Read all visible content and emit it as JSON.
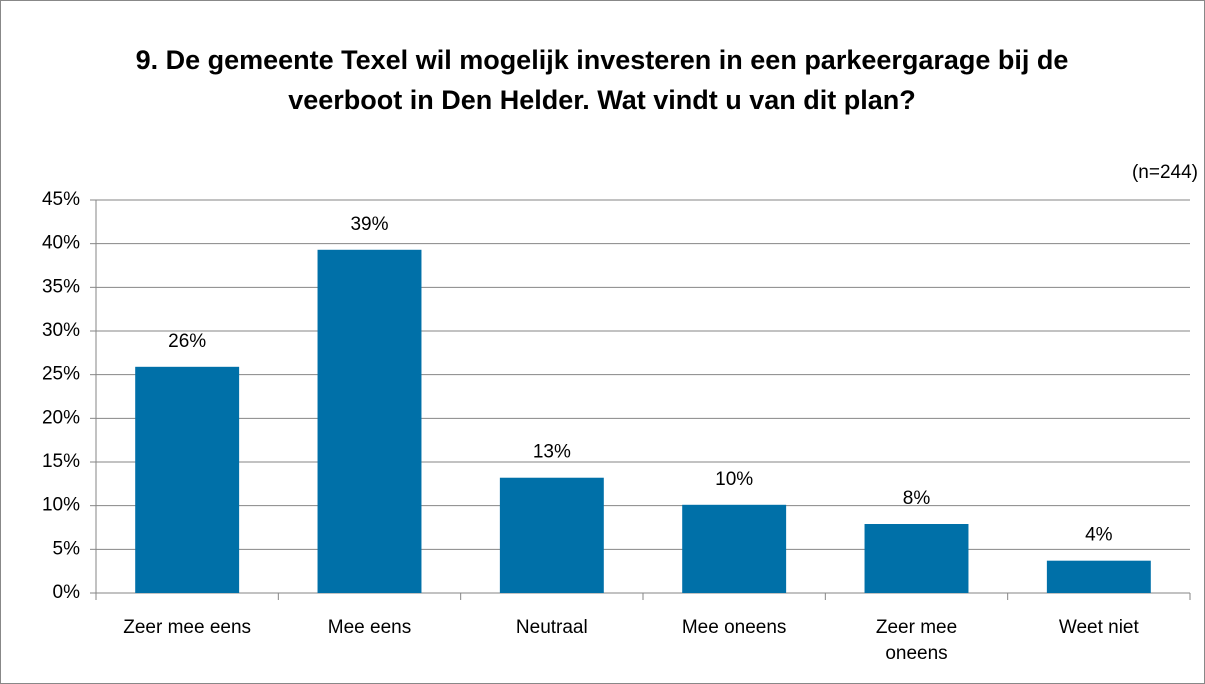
{
  "chart_data": {
    "type": "bar",
    "title": "9. De gemeente Texel wil mogelijk investeren in een parkeergarage bij de veerboot in Den Helder. Wat vindt u van dit plan?",
    "subtitle": "(n=244)",
    "categories": [
      "Zeer mee eens",
      "Mee eens",
      "Neutraal",
      "Mee oneens",
      "Zeer mee oneens",
      "Weet niet"
    ],
    "values": [
      25.9,
      39.3,
      13.2,
      10.1,
      7.9,
      3.7
    ],
    "value_labels": [
      "26%",
      "39%",
      "13%",
      "10%",
      "8%",
      "4%"
    ],
    "color": "#0070a8",
    "ylim": [
      0,
      45
    ],
    "yticks": [
      {
        "value": 0,
        "label": "0%"
      },
      {
        "value": 5,
        "label": "5%"
      },
      {
        "value": 10,
        "label": "10%"
      },
      {
        "value": 15,
        "label": "15%"
      },
      {
        "value": 20,
        "label": "20%"
      },
      {
        "value": 25,
        "label": "25%"
      },
      {
        "value": 30,
        "label": "30%"
      },
      {
        "value": 35,
        "label": "35%"
      },
      {
        "value": 40,
        "label": "40%"
      },
      {
        "value": 45,
        "label": "45%"
      }
    ],
    "grid": true
  }
}
